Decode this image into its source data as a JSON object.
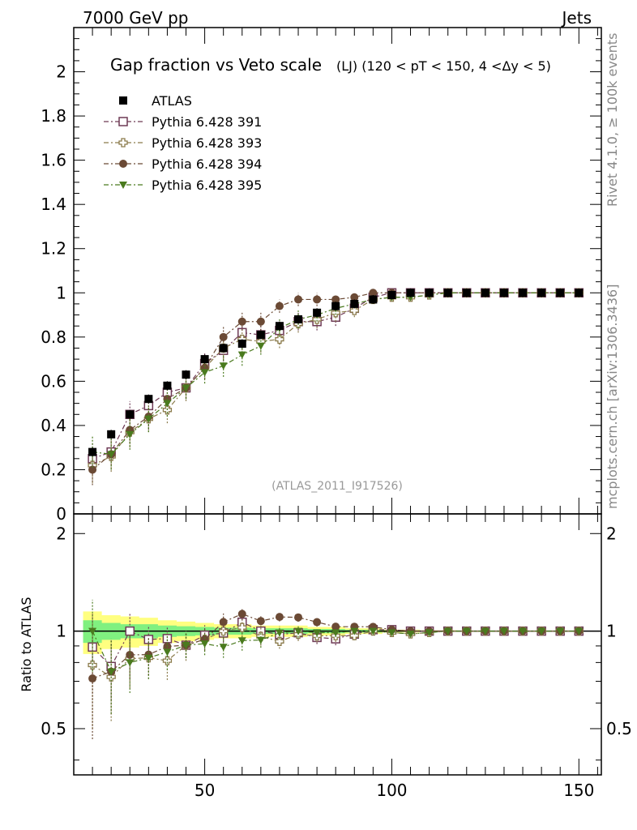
{
  "header": {
    "left": "7000 GeV pp",
    "right": "Jets"
  },
  "side_labels": {
    "rivet": "Rivet 4.1.0, ≥ 100k events",
    "mcplots": "mcplots.cern.ch [arXiv:1306.3436]"
  },
  "watermark": "(ATLAS_2011_I917526)",
  "chart_data": {
    "type": "scatter",
    "title": "Gap fraction vs Veto scale",
    "title_suffix": "(LJ) (120 < pT < 150, 4 <Δy < 5)",
    "xlabel": "",
    "ylabel": "",
    "ratio_ylabel": "Ratio to ATLAS",
    "xlim": [
      15,
      156
    ],
    "ylim": [
      0,
      2.2
    ],
    "ratio_ylim": [
      0.36,
      2.3
    ],
    "x_ticks": [
      50,
      100,
      150
    ],
    "y_ticks": [
      0,
      0.2,
      0.4,
      0.6,
      0.8,
      1,
      1.2,
      1.4,
      1.6,
      1.8,
      2
    ],
    "ratio_y_ticks": [
      0.5,
      1,
      2
    ],
    "x": [
      20,
      25,
      30,
      35,
      40,
      45,
      50,
      55,
      60,
      65,
      70,
      75,
      80,
      85,
      90,
      95,
      100,
      105,
      110,
      115,
      120,
      125,
      130,
      135,
      140,
      145,
      150
    ],
    "reference": {
      "name": "ATLAS",
      "color": "#000000",
      "values": [
        0.28,
        0.36,
        0.45,
        0.52,
        0.58,
        0.63,
        0.7,
        0.75,
        0.77,
        0.81,
        0.85,
        0.88,
        0.91,
        0.94,
        0.95,
        0.97,
        0.99,
        1.0,
        1.0,
        1.0,
        1.0,
        1.0,
        1.0,
        1.0,
        1.0,
        1.0,
        1.0
      ],
      "band_yellow": [
        0.15,
        0.12,
        0.11,
        0.1,
        0.08,
        0.07,
        0.06,
        0.05,
        0.05,
        0.04,
        0.04,
        0.04,
        0.03,
        0.03,
        0.02,
        0.02,
        0.01,
        0.01,
        0.005,
        0.005,
        0.003,
        0.003,
        0.002,
        0.002,
        0.002,
        0.002,
        0.002
      ],
      "band_green": [
        0.08,
        0.06,
        0.05,
        0.05,
        0.04,
        0.035,
        0.03,
        0.025,
        0.025,
        0.02,
        0.02,
        0.02,
        0.015,
        0.015,
        0.01,
        0.01,
        0.005,
        0.005,
        0.003,
        0.003,
        0.002,
        0.002,
        0.001,
        0.001,
        0.001,
        0.001,
        0.001
      ]
    },
    "series": [
      {
        "name": "Pythia 6.428 391",
        "color": "#6e3a55",
        "marker": "open-square",
        "values": [
          0.25,
          0.28,
          0.45,
          0.49,
          0.55,
          0.57,
          0.68,
          0.74,
          0.82,
          0.81,
          0.83,
          0.87,
          0.87,
          0.89,
          0.93,
          0.98,
          1.0,
          1.0,
          1.0,
          1.0,
          1.0,
          1.0,
          1.0,
          1.0,
          1.0,
          1.0,
          1.0
        ],
        "errors": [
          0.07,
          0.06,
          0.06,
          0.05,
          0.05,
          0.05,
          0.05,
          0.05,
          0.04,
          0.04,
          0.04,
          0.04,
          0.04,
          0.04,
          0.03,
          0.02,
          0.01,
          0.01,
          0.01,
          0.005,
          0.005,
          0.005,
          0.005,
          0.005,
          0.005,
          0.005,
          0.005
        ]
      },
      {
        "name": "Pythia 6.428 393",
        "color": "#8a7a4a",
        "marker": "open-cross",
        "values": [
          0.22,
          0.26,
          0.37,
          0.43,
          0.47,
          0.57,
          0.66,
          0.75,
          0.79,
          0.78,
          0.79,
          0.86,
          0.88,
          0.91,
          0.92,
          0.97,
          0.98,
          0.98,
          0.99,
          1.0,
          1.0,
          1.0,
          1.0,
          1.0,
          1.0,
          1.0,
          1.0
        ],
        "errors": [
          0.08,
          0.07,
          0.07,
          0.06,
          0.06,
          0.06,
          0.05,
          0.05,
          0.05,
          0.05,
          0.04,
          0.04,
          0.04,
          0.04,
          0.03,
          0.02,
          0.02,
          0.01,
          0.01,
          0.005,
          0.005,
          0.005,
          0.005,
          0.005,
          0.005,
          0.005,
          0.005
        ]
      },
      {
        "name": "Pythia 6.428 394",
        "color": "#6b4a35",
        "marker": "filled-circle",
        "values": [
          0.2,
          0.27,
          0.38,
          0.44,
          0.52,
          0.57,
          0.66,
          0.8,
          0.87,
          0.87,
          0.94,
          0.97,
          0.97,
          0.97,
          0.98,
          1.0,
          1.0,
          1.0,
          1.0,
          1.0,
          1.0,
          1.0,
          1.0,
          1.0,
          1.0,
          1.0,
          1.0
        ],
        "errors": [
          0.07,
          0.07,
          0.06,
          0.06,
          0.05,
          0.05,
          0.05,
          0.05,
          0.04,
          0.04,
          0.03,
          0.03,
          0.03,
          0.02,
          0.02,
          0.01,
          0.01,
          0.005,
          0.005,
          0.005,
          0.005,
          0.005,
          0.005,
          0.005,
          0.005,
          0.005,
          0.005
        ]
      },
      {
        "name": "Pythia 6.428 395",
        "color": "#4a7a1e",
        "marker": "filled-triangle-down",
        "values": [
          0.28,
          0.27,
          0.36,
          0.43,
          0.5,
          0.57,
          0.64,
          0.67,
          0.72,
          0.76,
          0.84,
          0.88,
          0.9,
          0.93,
          0.95,
          0.97,
          0.98,
          0.98,
          0.99,
          1.0,
          1.0,
          1.0,
          1.0,
          1.0,
          1.0,
          1.0,
          1.0
        ],
        "errors": [
          0.07,
          0.07,
          0.07,
          0.06,
          0.06,
          0.05,
          0.05,
          0.05,
          0.05,
          0.04,
          0.04,
          0.04,
          0.03,
          0.03,
          0.02,
          0.02,
          0.01,
          0.01,
          0.01,
          0.005,
          0.005,
          0.005,
          0.005,
          0.005,
          0.005,
          0.005,
          0.005
        ]
      }
    ]
  }
}
